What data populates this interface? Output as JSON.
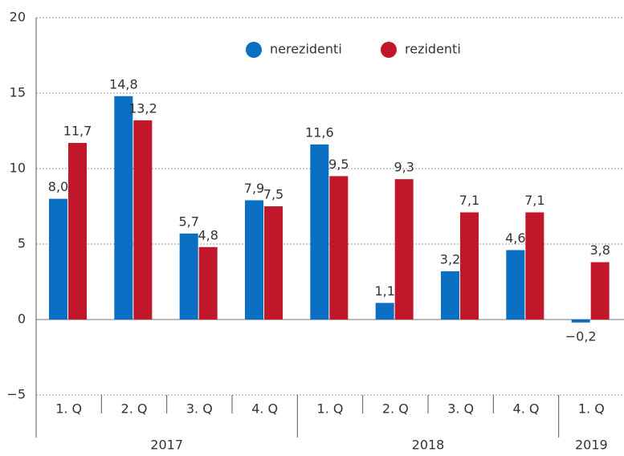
{
  "chart_data": {
    "type": "bar",
    "groups": [
      {
        "name": "2017",
        "categories": [
          "1. Q",
          "2. Q",
          "3. Q",
          "4. Q"
        ]
      },
      {
        "name": "2018",
        "categories": [
          "1. Q",
          "2. Q",
          "3. Q",
          "4. Q"
        ]
      },
      {
        "name": "2019",
        "categories": [
          "1. Q"
        ]
      }
    ],
    "series": [
      {
        "name": "nerezidenti",
        "color": "#0a6fc2",
        "values": [
          8.0,
          14.8,
          5.7,
          7.9,
          11.6,
          1.1,
          3.2,
          4.6,
          -0.2
        ],
        "value_labels": [
          "8,0",
          "14,8",
          "5,7",
          "7,9",
          "11,6",
          "1,1",
          "3,2",
          "4,6",
          "−0,2"
        ]
      },
      {
        "name": "rezidenti",
        "color": "#c0182a",
        "values": [
          11.7,
          13.2,
          4.8,
          7.5,
          9.5,
          9.3,
          7.1,
          7.1,
          3.8
        ],
        "value_labels": [
          "11,7",
          "13,2",
          "4,8",
          "7,5",
          "9,5",
          "9,3",
          "7,1",
          "7,1",
          "3,8"
        ]
      }
    ],
    "ylim": [
      -5,
      20
    ],
    "yticks": [
      {
        "value": -5,
        "label": "−5"
      },
      0,
      5,
      10,
      15,
      20
    ],
    "grid": true,
    "legend": "top"
  }
}
